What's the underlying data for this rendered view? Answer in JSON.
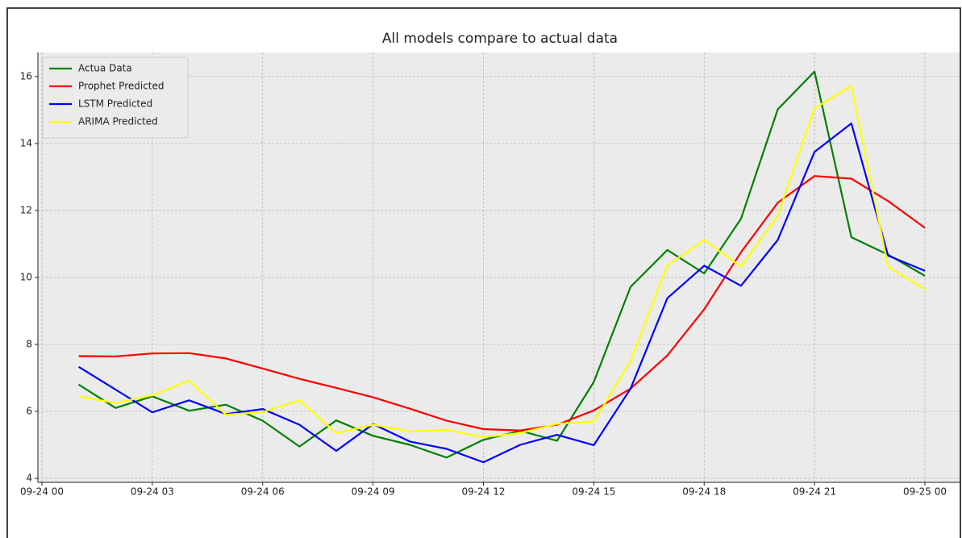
{
  "chart_data": {
    "type": "line",
    "title": "All models compare to actual data",
    "x": [
      "09-24 01",
      "09-24 02",
      "09-24 03",
      "09-24 04",
      "09-24 05",
      "09-24 06",
      "09-24 07",
      "09-24 08",
      "09-24 09",
      "09-24 10",
      "09-24 11",
      "09-24 12",
      "09-24 13",
      "09-24 14",
      "09-24 15",
      "09-24 16",
      "09-24 17",
      "09-24 18",
      "09-24 19",
      "09-24 20",
      "09-24 21",
      "09-24 22",
      "09-24 23",
      "09-25 00"
    ],
    "series": [
      {
        "name": "Actua Data",
        "color": "#008000",
        "values": [
          6.8,
          6.1,
          6.45,
          6.02,
          6.2,
          5.72,
          4.95,
          5.73,
          5.27,
          5.0,
          4.62,
          5.15,
          5.42,
          5.12,
          6.88,
          9.72,
          10.82,
          10.12,
          11.75,
          15.02,
          16.15,
          11.2,
          10.68,
          10.05
        ]
      },
      {
        "name": "Prophet Predicted",
        "color": "#ff0000",
        "values": [
          7.65,
          7.64,
          7.73,
          7.74,
          7.58,
          7.28,
          6.97,
          6.7,
          6.42,
          6.08,
          5.72,
          5.47,
          5.43,
          5.6,
          6.03,
          6.68,
          7.67,
          9.05,
          10.75,
          12.23,
          13.03,
          12.95,
          12.28,
          11.48
        ]
      },
      {
        "name": "LSTM Predicted",
        "color": "#0000ff",
        "values": [
          7.33,
          6.65,
          5.97,
          6.33,
          5.92,
          6.07,
          5.6,
          4.82,
          5.62,
          5.1,
          4.88,
          4.48,
          5.0,
          5.3,
          4.99,
          6.68,
          9.38,
          10.35,
          9.75,
          11.12,
          13.75,
          14.6,
          10.65,
          10.2
        ]
      },
      {
        "name": "ARIMA Predicted",
        "color": "#ffff00",
        "values": [
          6.45,
          6.25,
          6.48,
          6.92,
          5.9,
          5.98,
          6.33,
          5.35,
          5.6,
          5.4,
          5.45,
          5.23,
          5.35,
          5.63,
          5.7,
          7.5,
          10.35,
          11.12,
          10.32,
          11.85,
          15.05,
          15.72,
          10.32,
          9.65
        ]
      }
    ],
    "xlim": [
      "09-24 00",
      "09-25 00"
    ],
    "xticks": [
      "09-24 00",
      "09-24 03",
      "09-24 06",
      "09-24 09",
      "09-24 12",
      "09-24 15",
      "09-24 18",
      "09-24 21",
      "09-25 00"
    ],
    "ylim": [
      3.88,
      16.72
    ],
    "yticks": [
      4,
      6,
      8,
      10,
      12,
      14,
      16
    ],
    "grid": true,
    "legend": "upper left"
  }
}
